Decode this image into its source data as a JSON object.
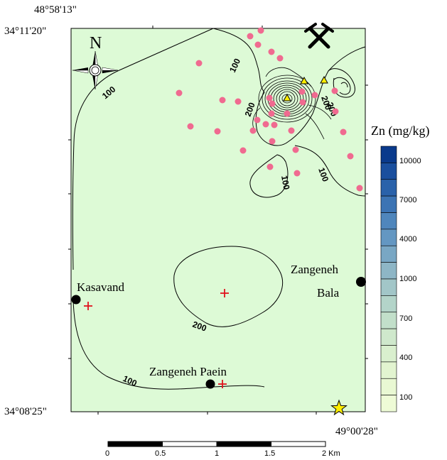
{
  "coordinates": {
    "top_left_lon": "48°58'13\"",
    "top_left_lat": "34°11'20\"",
    "bottom_left_lat": "34°08'25\"",
    "bottom_right_lon": "49°00'28\""
  },
  "north_arrow": {
    "label": "N"
  },
  "legend": {
    "title": "Zn (mg/kg)",
    "ticks": [
      "10000",
      "7000",
      "4000",
      "1000",
      "700",
      "400",
      "100"
    ],
    "colors": [
      "#0a3a8c",
      "#1a4f9e",
      "#2a62aa",
      "#3c74b4",
      "#4f86bc",
      "#6497c2",
      "#79a7c4",
      "#8eb6c6",
      "#a2c6c8",
      "#b3d4c9",
      "#c2dfca",
      "#cfe8cc",
      "#d9efce",
      "#e2f4d0",
      "#e9f8d3",
      "#eefbd6"
    ]
  },
  "map": {
    "background_color": "#ddfad6",
    "contour_labels": [
      "100",
      "100",
      "100",
      "200",
      "200",
      "200",
      "100",
      "100",
      "100",
      "200"
    ],
    "places": {
      "kasavand": "Kasavand",
      "zangeneh_bala_line1": "Zangeneh",
      "zangeneh_bala_line2": "Bala",
      "zangeneh_paein": "Zangeneh Paein"
    },
    "symbols": {
      "mine": "crossed-hammers-icon",
      "samples": "pink-dot",
      "triangles": "yellow-triangle",
      "crosses": "red-cross",
      "star": "yellow-star"
    }
  },
  "scale_bar": {
    "labels": [
      "0",
      "0.5",
      "1",
      "1.5",
      "2 Km"
    ]
  }
}
